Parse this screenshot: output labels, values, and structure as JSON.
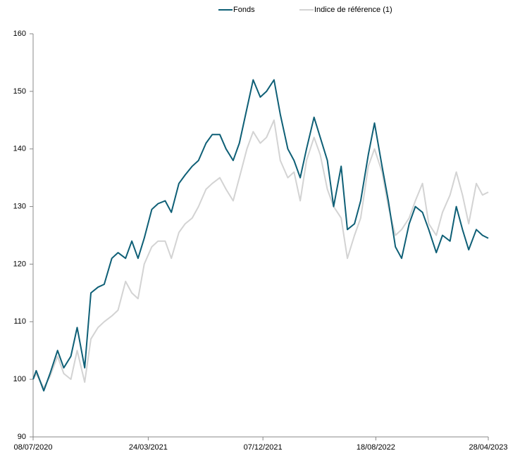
{
  "chart_data": {
    "type": "line",
    "legend": "top",
    "x": [
      "08/07/2020",
      "15/07/2020",
      "01/08/2020",
      "15/08/2020",
      "01/09/2020",
      "15/09/2020",
      "01/10/2020",
      "15/10/2020",
      "01/11/2020",
      "15/11/2020",
      "01/12/2020",
      "15/12/2020",
      "01/01/2021",
      "15/01/2021",
      "01/02/2021",
      "15/02/2021",
      "01/03/2021",
      "15/03/2021",
      "01/04/2021",
      "15/04/2021",
      "01/05/2021",
      "15/05/2021",
      "01/06/2021",
      "15/06/2021",
      "01/07/2021",
      "15/07/2021",
      "01/08/2021",
      "15/08/2021",
      "01/09/2021",
      "15/09/2021",
      "01/10/2021",
      "15/10/2021",
      "01/11/2021",
      "15/11/2021",
      "01/12/2021",
      "15/12/2021",
      "01/01/2022",
      "15/01/2022",
      "01/02/2022",
      "15/02/2022",
      "01/03/2022",
      "15/03/2022",
      "01/04/2022",
      "15/04/2022",
      "01/05/2022",
      "15/05/2022",
      "01/06/2022",
      "15/06/2022",
      "01/07/2022",
      "15/07/2022",
      "01/08/2022",
      "15/08/2022",
      "01/09/2022",
      "15/09/2022",
      "01/10/2022",
      "15/10/2022",
      "01/11/2022",
      "15/11/2022",
      "01/12/2022",
      "15/12/2022",
      "01/01/2023",
      "15/01/2023",
      "01/02/2023",
      "15/02/2023",
      "01/03/2023",
      "15/03/2023",
      "01/04/2023",
      "15/04/2023",
      "28/04/2023"
    ],
    "series": [
      {
        "name": "Fonds",
        "color": "#0e5f76",
        "values": [
          100,
          101.5,
          98,
          101,
          105,
          102,
          104,
          109,
          102,
          115,
          116,
          116.5,
          121,
          122,
          121,
          124,
          121,
          124.5,
          129.5,
          130.5,
          131,
          129,
          134,
          135.5,
          137,
          138,
          141,
          142.5,
          142.5,
          140,
          138,
          141,
          147,
          152,
          149,
          150,
          152,
          146,
          140,
          138,
          135,
          140,
          145.5,
          142,
          138,
          130,
          137,
          126,
          127,
          131,
          139,
          144.5,
          137,
          131,
          123,
          121,
          127,
          130,
          129,
          126,
          122,
          125,
          124,
          130,
          126,
          122.5,
          126,
          125,
          124.5
        ]
      },
      {
        "name": "Indice de référence (1)",
        "color": "#d3d3d3",
        "values": [
          100,
          101,
          98.5,
          100.5,
          104,
          101,
          100,
          105,
          99.5,
          107,
          109,
          110,
          111,
          112,
          117,
          115,
          114,
          120,
          123,
          124,
          124,
          121,
          125.5,
          127,
          128,
          130,
          133,
          134,
          135,
          133,
          131,
          135,
          140,
          143,
          141,
          142,
          145,
          138,
          135,
          136,
          131,
          138,
          142,
          139,
          133,
          130,
          128,
          121,
          125,
          128,
          137,
          140,
          136,
          130,
          125,
          126,
          128,
          131,
          134,
          127,
          125,
          129,
          132,
          136,
          132,
          127,
          134,
          132,
          132.5
        ]
      }
    ],
    "xlim": [
      "08/07/2020",
      "28/04/2023"
    ],
    "xticks": [
      "08/07/2020",
      "24/03/2021",
      "07/12/2021",
      "18/08/2022",
      "28/04/2023"
    ],
    "ylim": [
      90,
      160
    ],
    "yticks": [
      90,
      100,
      110,
      120,
      130,
      140,
      150,
      160
    ],
    "grid": false
  }
}
